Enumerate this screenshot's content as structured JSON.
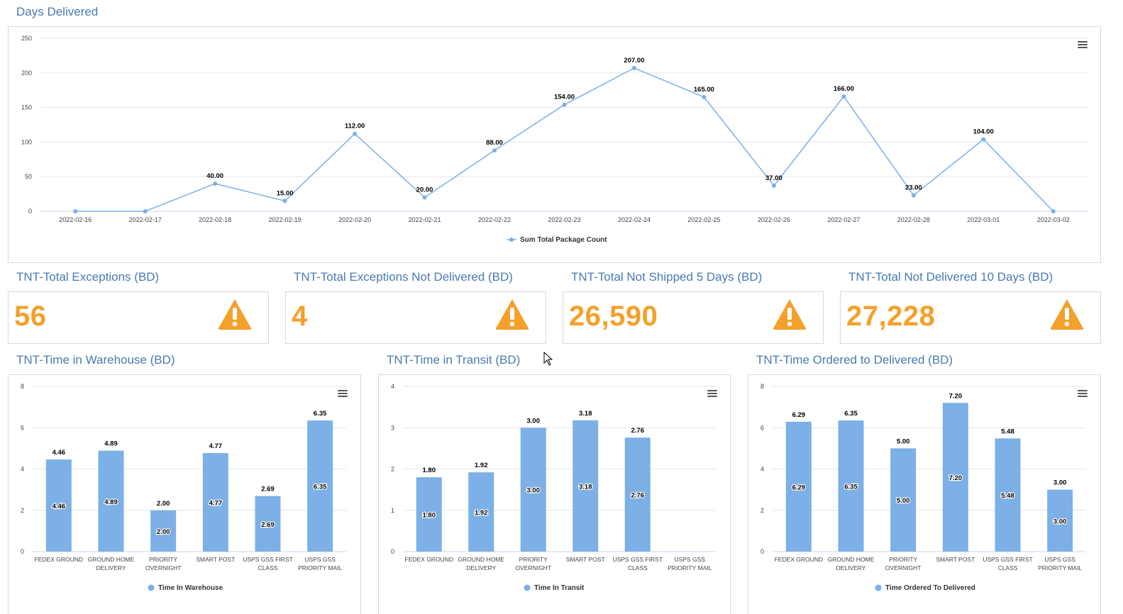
{
  "line_section": {
    "title": "Days Delivered"
  },
  "kpis": [
    {
      "title": "TNT-Total Exceptions (BD)",
      "value": "56",
      "icon": "warning-icon"
    },
    {
      "title": "TNT-Total Exceptions Not Delivered (BD)",
      "value": "4",
      "icon": "warning-icon"
    },
    {
      "title": "TNT-Total Not Shipped 5 Days (BD)",
      "value": "26,590",
      "icon": "warning-icon"
    },
    {
      "title": "TNT-Total Not Delivered 10 Days (BD)",
      "value": "27,228",
      "icon": "warning-icon"
    }
  ],
  "bar_sections": [
    {
      "title": "TNT-Time in Warehouse (BD)"
    },
    {
      "title": "TNT-Time in Transit (BD)"
    },
    {
      "title": "TNT-Time Ordered to Delivered (BD)"
    }
  ],
  "colors": {
    "accent": "#4a7ab0",
    "kpi": "#f5a02a",
    "line": "#7cb0e6",
    "bar": "#7cb0e6",
    "grid": "#e6e6e6"
  },
  "chart_data": [
    {
      "type": "line",
      "categories": [
        "2022-02-16",
        "2022-02-17",
        "2022-02-18",
        "2022-02-19",
        "2022-02-20",
        "2022-02-21",
        "2022-02-22",
        "2022-02-23",
        "2022-02-24",
        "2022-02-25",
        "2022-02-26",
        "2022-02-27",
        "2022-02-28",
        "2022-03-01",
        "2022-03-02"
      ],
      "series": [
        {
          "name": "Sum Total Package Count",
          "values": [
            0,
            0,
            40,
            15,
            112,
            20,
            88,
            154,
            207,
            165,
            37,
            166,
            23,
            104,
            0
          ]
        }
      ],
      "data_labels": [
        "",
        "",
        "40.00",
        "15.00",
        "112.00",
        "20.00",
        "88.00",
        "154.00",
        "207.00",
        "165.00",
        "37.00",
        "166.00",
        "23.00",
        "104.00",
        ""
      ],
      "yticks": [
        "0",
        "50",
        "100",
        "150",
        "200",
        "250"
      ],
      "ylim": [
        0,
        250
      ],
      "grid": true,
      "legend": "bottom-center"
    },
    {
      "type": "bar",
      "categories": [
        [
          "FEDEX GROUND"
        ],
        [
          "GROUND HOME",
          "DELIVERY"
        ],
        [
          "PRIORITY",
          "OVERNIGHT"
        ],
        [
          "SMART POST"
        ],
        [
          "USPS GSS FIRST",
          "CLASS"
        ],
        [
          "USPS GSS",
          "PRIORITY MAIL"
        ]
      ],
      "series": [
        {
          "name": "Time In Warehouse",
          "values": [
            4.46,
            4.89,
            2.0,
            4.77,
            2.69,
            6.35
          ]
        }
      ],
      "data_labels": [
        "4.46",
        "4.89",
        "2.00",
        "4.77",
        "2.69",
        "6.35"
      ],
      "yticks": [
        "0",
        "2",
        "4",
        "6",
        "8"
      ],
      "ylim": [
        0,
        8
      ],
      "grid": true,
      "legend": "bottom-center"
    },
    {
      "type": "bar",
      "categories": [
        [
          "FEDEX GROUND"
        ],
        [
          "GROUND HOME",
          "DELIVERY"
        ],
        [
          "PRIORITY",
          "OVERNIGHT"
        ],
        [
          "SMART POST"
        ],
        [
          "USPS GSS FIRST",
          "CLASS"
        ],
        [
          "USPS GSS",
          "PRIORITY MAIL"
        ]
      ],
      "series": [
        {
          "name": "Time In Transit",
          "values": [
            1.8,
            1.92,
            3.0,
            3.18,
            2.76,
            null
          ]
        }
      ],
      "data_labels": [
        "1.80",
        "1.92",
        "3.00",
        "3.18",
        "2.76",
        ""
      ],
      "yticks": [
        "0",
        "1",
        "2",
        "3",
        "4"
      ],
      "ylim": [
        0,
        4
      ],
      "grid": true,
      "legend": "bottom-center"
    },
    {
      "type": "bar",
      "categories": [
        [
          "FEDEX GROUND"
        ],
        [
          "GROUND HOME",
          "DELIVERY"
        ],
        [
          "PRIORITY",
          "OVERNIGHT"
        ],
        [
          "SMART POST"
        ],
        [
          "USPS GSS FIRST",
          "CLASS"
        ],
        [
          "USPS GSS",
          "PRIORITY MAIL"
        ]
      ],
      "series": [
        {
          "name": "Time Ordered To Delivered",
          "values": [
            6.29,
            6.35,
            5.0,
            7.2,
            5.48,
            3.0
          ]
        }
      ],
      "data_labels": [
        "6.29",
        "6.35",
        "5.00",
        "7.20",
        "5.48",
        "3.00"
      ],
      "yticks": [
        "0",
        "2",
        "4",
        "6",
        "8"
      ],
      "ylim": [
        0,
        8
      ],
      "grid": true,
      "legend": "bottom-center"
    }
  ]
}
